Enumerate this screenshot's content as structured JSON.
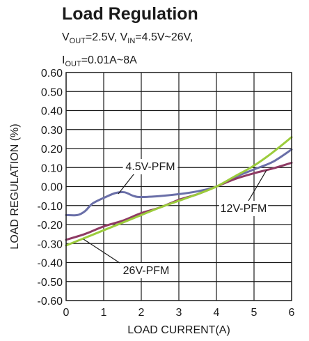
{
  "header": {
    "title": "Load Regulation",
    "vout_main": "V",
    "vout_sub": "OUT",
    "vout_rest": "=2.5V, ",
    "vin_main": "V",
    "vin_sub": "IN",
    "vin_rest": "=4.5V~26V,",
    "iout_main": "I",
    "iout_sub": "OUT",
    "iout_rest": "=0.01A~8A"
  },
  "chart_data": {
    "type": "line",
    "title": "Load Regulation",
    "xlabel": "LOAD CURRENT(A)",
    "ylabel": "LOAD REGULATION (%)",
    "xlim": [
      0,
      6
    ],
    "ylim": [
      -0.6,
      0.6
    ],
    "xticks": [
      "0",
      "1",
      "2",
      "3",
      "4",
      "5",
      "6"
    ],
    "yticks": [
      "0.60",
      "0.50",
      "0.40",
      "0.30",
      "0.20",
      "0.10",
      "0.00",
      "-0.10",
      "-0.20",
      "-0.30",
      "-0.40",
      "-0.50",
      "-0.60"
    ],
    "grid": true,
    "series": [
      {
        "name": "4.5V-PFM",
        "color": "#6a6fa8",
        "points": [
          [
            0,
            -0.15
          ],
          [
            0.3,
            -0.15
          ],
          [
            0.5,
            -0.13
          ],
          [
            0.7,
            -0.09
          ],
          [
            1.0,
            -0.06
          ],
          [
            1.3,
            -0.035
          ],
          [
            1.55,
            -0.03
          ],
          [
            1.8,
            -0.05
          ],
          [
            2.0,
            -0.055
          ],
          [
            2.5,
            -0.05
          ],
          [
            3.0,
            -0.04
          ],
          [
            3.5,
            -0.025
          ],
          [
            4.0,
            0.0
          ],
          [
            4.5,
            0.05
          ],
          [
            5.0,
            0.09
          ],
          [
            5.5,
            0.13
          ],
          [
            6.0,
            0.195
          ]
        ]
      },
      {
        "name": "12V-PFM",
        "color": "#8e3a64",
        "points": [
          [
            0,
            -0.28
          ],
          [
            0.5,
            -0.25
          ],
          [
            1.0,
            -0.21
          ],
          [
            1.5,
            -0.18
          ],
          [
            2.0,
            -0.14
          ],
          [
            2.5,
            -0.11
          ],
          [
            3.0,
            -0.07
          ],
          [
            3.5,
            -0.04
          ],
          [
            4.0,
            0.0
          ],
          [
            4.5,
            0.04
          ],
          [
            5.0,
            0.07
          ],
          [
            5.5,
            0.095
          ],
          [
            6.0,
            0.125
          ]
        ]
      },
      {
        "name": "26V-PFM",
        "color": "#9ccc3c",
        "points": [
          [
            0,
            -0.31
          ],
          [
            0.5,
            -0.27
          ],
          [
            1.0,
            -0.23
          ],
          [
            1.5,
            -0.19
          ],
          [
            2.0,
            -0.15
          ],
          [
            2.5,
            -0.11
          ],
          [
            3.0,
            -0.075
          ],
          [
            3.5,
            -0.04
          ],
          [
            4.0,
            0.0
          ],
          [
            4.5,
            0.055
          ],
          [
            5.0,
            0.11
          ],
          [
            5.5,
            0.18
          ],
          [
            6.0,
            0.26
          ]
        ]
      }
    ],
    "annotations": [
      {
        "text": "4.5V-PFM",
        "series": 0
      },
      {
        "text": "12V-PFM",
        "series": 1
      },
      {
        "text": "26V-PFM",
        "series": 2
      }
    ]
  }
}
